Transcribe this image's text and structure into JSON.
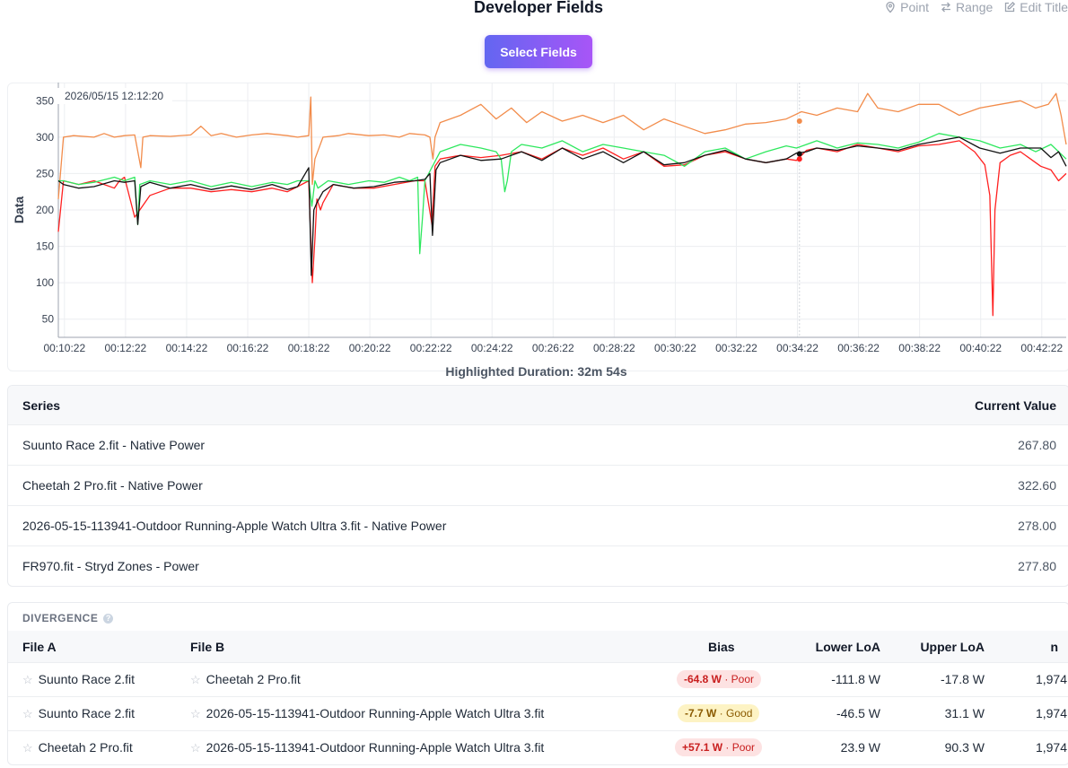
{
  "page": {
    "title": "Developer Fields",
    "select_fields": "Select Fields"
  },
  "toolbar": {
    "point": "Point",
    "range": "Range",
    "edit_title": "Edit Title"
  },
  "chart": {
    "hover_label": "2026/05/15 12:12:20",
    "duration": "Highlighted Duration: 32m 54s"
  },
  "chart_data": {
    "type": "line",
    "ylabel": "Data",
    "xlabel": "",
    "ylim": [
      25,
      375
    ],
    "yticks": [
      50,
      100,
      150,
      200,
      250,
      300,
      350
    ],
    "xlim": [
      610,
      2590
    ],
    "xtick_labels": [
      "00:10:22",
      "00:12:22",
      "00:14:22",
      "00:16:22",
      "00:18:22",
      "00:20:22",
      "00:22:22",
      "00:24:22",
      "00:26:22",
      "00:28:22",
      "00:30:22",
      "00:32:22",
      "00:34:22",
      "00:36:22",
      "00:38:22",
      "00:40:22",
      "00:42:22"
    ],
    "xtick_values": [
      622,
      742,
      862,
      982,
      1102,
      1222,
      1342,
      1462,
      1582,
      1702,
      1822,
      1942,
      2062,
      2182,
      2302,
      2422,
      2542
    ],
    "grid": true,
    "series": [
      {
        "color": "#f28c4b",
        "x": [
          610,
          620,
          640,
          680,
          700,
          720,
          740,
          760,
          772,
          776,
          790,
          830,
          870,
          890,
          910,
          930,
          960,
          990,
          1020,
          1060,
          1080,
          1102,
          1106,
          1109,
          1114,
          1130,
          1160,
          1180,
          1220,
          1250,
          1280,
          1300,
          1330,
          1340,
          1346,
          1350,
          1360,
          1400,
          1440,
          1470,
          1500,
          1530,
          1560,
          1600,
          1640,
          1680,
          1720,
          1760,
          1800,
          1840,
          1880,
          1920,
          1960,
          2000,
          2040,
          2070,
          2100,
          2140,
          2180,
          2200,
          2220,
          2260,
          2300,
          2340,
          2380,
          2420,
          2460,
          2500,
          2530,
          2555,
          2570,
          2580,
          2590
        ],
        "values": [
          215,
          300,
          302,
          300,
          305,
          300,
          302,
          303,
          258,
          300,
          302,
          301,
          303,
          315,
          302,
          305,
          300,
          303,
          305,
          302,
          300,
          302,
          355,
          235,
          270,
          300,
          302,
          305,
          302,
          303,
          300,
          305,
          303,
          300,
          270,
          300,
          320,
          330,
          345,
          325,
          340,
          320,
          335,
          322,
          330,
          320,
          330,
          310,
          325,
          315,
          305,
          310,
          318,
          320,
          325,
          335,
          330,
          340,
          335,
          360,
          340,
          335,
          345,
          345,
          330,
          340,
          345,
          350,
          340,
          345,
          360,
          330,
          290
        ]
      },
      {
        "color": "#ff2020",
        "x": [
          610,
          620,
          650,
          680,
          700,
          720,
          730,
          740,
          760,
          790,
          830,
          870,
          910,
          950,
          990,
          1030,
          1060,
          1080,
          1102,
          1109,
          1114,
          1118,
          1125,
          1130,
          1150,
          1190,
          1230,
          1270,
          1310,
          1330,
          1344,
          1350,
          1360,
          1400,
          1440,
          1480,
          1520,
          1560,
          1600,
          1640,
          1680,
          1720,
          1760,
          1800,
          1840,
          1880,
          1920,
          1960,
          2000,
          2040,
          2060,
          2080,
          2100,
          2140,
          2180,
          2220,
          2260,
          2300,
          2340,
          2380,
          2410,
          2430,
          2440,
          2446,
          2450,
          2460,
          2480,
          2500,
          2520,
          2540,
          2560,
          2575,
          2590
        ],
        "values": [
          170,
          240,
          235,
          240,
          235,
          230,
          240,
          245,
          190,
          220,
          230,
          230,
          225,
          228,
          225,
          230,
          225,
          232,
          240,
          100,
          160,
          215,
          200,
          210,
          235,
          230,
          230,
          235,
          240,
          240,
          180,
          260,
          270,
          275,
          272,
          275,
          280,
          270,
          285,
          275,
          285,
          270,
          280,
          260,
          262,
          275,
          280,
          270,
          265,
          270,
          268,
          282,
          285,
          280,
          290,
          285,
          280,
          288,
          290,
          295,
          280,
          262,
          220,
          55,
          200,
          265,
          275,
          280,
          270,
          260,
          255,
          240,
          250
        ]
      },
      {
        "color": "#2ee85e",
        "x": [
          610,
          620,
          650,
          680,
          720,
          740,
          760,
          766,
          770,
          790,
          830,
          870,
          910,
          950,
          990,
          1030,
          1060,
          1080,
          1102,
          1108,
          1114,
          1120,
          1140,
          1180,
          1220,
          1250,
          1280,
          1300,
          1316,
          1320,
          1326,
          1330,
          1360,
          1400,
          1440,
          1470,
          1480,
          1487,
          1492,
          1500,
          1520,
          1560,
          1600,
          1640,
          1680,
          1720,
          1760,
          1800,
          1840,
          1880,
          1920,
          1960,
          2000,
          2040,
          2060,
          2080,
          2100,
          2140,
          2180,
          2220,
          2260,
          2300,
          2340,
          2380,
          2420,
          2460,
          2500,
          2530,
          2560,
          2590
        ],
        "values": [
          240,
          240,
          235,
          238,
          245,
          240,
          245,
          180,
          235,
          240,
          235,
          240,
          232,
          238,
          232,
          238,
          235,
          240,
          240,
          205,
          240,
          230,
          240,
          235,
          240,
          238,
          245,
          240,
          245,
          140,
          195,
          240,
          280,
          290,
          285,
          280,
          270,
          225,
          240,
          280,
          290,
          285,
          295,
          280,
          290,
          285,
          280,
          275,
          260,
          280,
          285,
          270,
          280,
          288,
          285,
          290,
          295,
          285,
          292,
          290,
          285,
          293,
          305,
          300,
          295,
          285,
          290,
          280,
          290,
          270
        ]
      },
      {
        "color": "#111111",
        "x": [
          610,
          620,
          650,
          680,
          720,
          740,
          760,
          766,
          772,
          790,
          830,
          870,
          910,
          950,
          990,
          1030,
          1060,
          1080,
          1102,
          1107,
          1112,
          1118,
          1130,
          1150,
          1190,
          1230,
          1270,
          1310,
          1330,
          1340,
          1345,
          1352,
          1360,
          1400,
          1440,
          1480,
          1520,
          1560,
          1600,
          1640,
          1680,
          1720,
          1760,
          1800,
          1840,
          1880,
          1920,
          1960,
          2000,
          2040,
          2060,
          2080,
          2100,
          2140,
          2180,
          2220,
          2260,
          2300,
          2340,
          2380,
          2420,
          2460,
          2500,
          2540,
          2560,
          2575,
          2590
        ],
        "values": [
          240,
          235,
          230,
          232,
          240,
          238,
          240,
          180,
          232,
          238,
          230,
          235,
          228,
          233,
          228,
          235,
          228,
          232,
          258,
          110,
          200,
          210,
          225,
          235,
          230,
          232,
          238,
          240,
          242,
          250,
          165,
          255,
          265,
          275,
          268,
          270,
          280,
          268,
          285,
          270,
          280,
          265,
          280,
          262,
          265,
          275,
          282,
          270,
          265,
          270,
          278,
          280,
          285,
          282,
          288,
          285,
          282,
          290,
          295,
          300,
          285,
          278,
          285,
          285,
          272,
          280,
          260
        ]
      }
    ],
    "markers": [
      {
        "x": 2066,
        "y": 322,
        "color": "#f28c4b"
      },
      {
        "x": 2066,
        "y": 277,
        "color": "#111111"
      },
      {
        "x": 2066,
        "y": 270,
        "color": "#ff2020"
      }
    ]
  },
  "series_table": {
    "headers": [
      "Series",
      "Current Value"
    ],
    "rows": [
      {
        "name": "Suunto Race 2.fit - Native Power",
        "value": "267.80"
      },
      {
        "name": "Cheetah 2 Pro.fit - Native Power",
        "value": "322.60"
      },
      {
        "name": "2026-05-15-113941-Outdoor Running-Apple Watch Ultra 3.fit - Native Power",
        "value": "278.00"
      },
      {
        "name": "FR970.fit - Stryd Zones - Power",
        "value": "277.80"
      }
    ]
  },
  "divergence": {
    "title": "DIVERGENCE",
    "help": "?",
    "headers": {
      "file_a": "File A",
      "file_b": "File B",
      "bias": "Bias",
      "lower": "Lower LoA",
      "upper": "Upper LoA",
      "n": "n"
    },
    "star": "☆",
    "rows": [
      {
        "file_a": "Suunto Race 2.fit",
        "file_b": "Cheetah 2 Pro.fit",
        "bias_value": "-64.8 W",
        "bias_rating": " · Poor",
        "lower": "-111.8 W",
        "upper": "-17.8 W",
        "n": "1,974",
        "badge_bg": "#fde2e2",
        "badge_fg": "#c81e1e"
      },
      {
        "file_a": "Suunto Race 2.fit",
        "file_b": "2026-05-15-113941-Outdoor Running-Apple Watch Ultra 3.fit",
        "bias_value": "-7.7 W",
        "bias_rating": " · Good",
        "lower": "-46.5 W",
        "upper": "31.1 W",
        "n": "1,974",
        "badge_bg": "#fdf3c4",
        "badge_fg": "#8a5a00"
      },
      {
        "file_a": "Cheetah 2 Pro.fit",
        "file_b": "2026-05-15-113941-Outdoor Running-Apple Watch Ultra 3.fit",
        "bias_value": "+57.1 W",
        "bias_rating": " · Poor",
        "lower": "23.9 W",
        "upper": "90.3 W",
        "n": "1,974",
        "badge_bg": "#fde2e2",
        "badge_fg": "#c81e1e"
      }
    ]
  }
}
